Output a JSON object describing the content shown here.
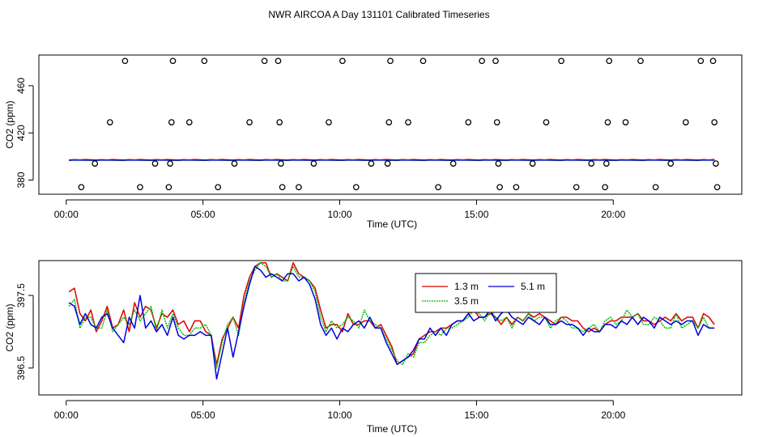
{
  "title": "NWR AIRCOA A  Day 131101  Calibrated Timeseries",
  "colors": {
    "s1": "#e00000",
    "s2": "#00bb00",
    "s3": "#0000dd",
    "frame": "#000000"
  },
  "chart_data": [
    {
      "type": "scatter",
      "xlabel": "Time (UTC)",
      "ylabel": "CO2 (ppm)",
      "xlim": [
        -1.0,
        24.7
      ],
      "ylim": [
        368,
        486
      ],
      "xticks": [
        0,
        5,
        10,
        15,
        20
      ],
      "xtick_labels": [
        "00:00",
        "05:00",
        "10:00",
        "15:00",
        "20:00"
      ],
      "yticks": [
        380,
        420,
        460
      ],
      "ytick_labels": [
        "380",
        "420",
        "460"
      ],
      "grid": false,
      "points": [
        [
          0.55,
          374
        ],
        [
          1.05,
          394
        ],
        [
          1.6,
          429
        ],
        [
          2.15,
          481
        ],
        [
          2.7,
          374
        ],
        [
          3.25,
          394
        ],
        [
          3.75,
          374
        ],
        [
          3.8,
          394
        ],
        [
          3.85,
          429
        ],
        [
          3.9,
          481
        ],
        [
          4.5,
          429
        ],
        [
          5.05,
          481
        ],
        [
          5.55,
          374
        ],
        [
          6.15,
          394
        ],
        [
          6.7,
          429
        ],
        [
          7.25,
          481
        ],
        [
          7.75,
          481
        ],
        [
          7.8,
          429
        ],
        [
          7.85,
          394
        ],
        [
          7.9,
          374
        ],
        [
          8.5,
          374
        ],
        [
          9.05,
          394
        ],
        [
          9.6,
          429
        ],
        [
          10.1,
          481
        ],
        [
          10.6,
          374
        ],
        [
          11.15,
          394
        ],
        [
          11.75,
          394
        ],
        [
          11.8,
          429
        ],
        [
          11.85,
          481
        ],
        [
          12.5,
          429
        ],
        [
          13.05,
          481
        ],
        [
          13.6,
          374
        ],
        [
          14.15,
          394
        ],
        [
          14.7,
          429
        ],
        [
          15.2,
          481
        ],
        [
          15.7,
          481
        ],
        [
          15.75,
          429
        ],
        [
          15.8,
          394
        ],
        [
          15.85,
          374
        ],
        [
          16.45,
          374
        ],
        [
          17.05,
          394
        ],
        [
          17.55,
          429
        ],
        [
          18.1,
          481
        ],
        [
          18.65,
          374
        ],
        [
          19.2,
          394
        ],
        [
          19.7,
          374
        ],
        [
          19.75,
          394
        ],
        [
          19.8,
          429
        ],
        [
          19.85,
          481
        ],
        [
          20.45,
          429
        ],
        [
          21.0,
          481
        ],
        [
          21.55,
          374
        ],
        [
          22.1,
          394
        ],
        [
          22.65,
          429
        ],
        [
          23.2,
          481
        ],
        [
          23.65,
          481
        ],
        [
          23.7,
          429
        ],
        [
          23.75,
          394
        ],
        [
          23.8,
          374
        ]
      ],
      "series_y": 397
    },
    {
      "type": "line",
      "xlabel": "Time (UTC)",
      "ylabel": "CO2 (ppm)",
      "xlim": [
        -1.0,
        24.7
      ],
      "ylim": [
        396.13,
        397.98
      ],
      "xticks": [
        0,
        5,
        10,
        15,
        20
      ],
      "xtick_labels": [
        "00:00",
        "05:00",
        "10:00",
        "15:00",
        "20:00"
      ],
      "yticks": [
        396.5,
        397.5
      ],
      "ytick_labels": [
        "396.5",
        "397.5"
      ],
      "grid": false,
      "legend": {
        "position": "top-center",
        "entries": [
          "1.3 m",
          "3.5 m",
          "5.1 m"
        ]
      },
      "x": [
        0.1,
        0.3,
        0.5,
        0.7,
        0.9,
        1.1,
        1.3,
        1.5,
        1.7,
        1.9,
        2.1,
        2.3,
        2.5,
        2.7,
        2.9,
        3.1,
        3.3,
        3.5,
        3.7,
        3.9,
        4.1,
        4.3,
        4.5,
        4.7,
        4.9,
        5.1,
        5.3,
        5.5,
        5.7,
        5.9,
        6.1,
        6.3,
        6.5,
        6.7,
        6.9,
        7.1,
        7.3,
        7.5,
        7.7,
        7.9,
        8.1,
        8.3,
        8.5,
        8.7,
        8.9,
        9.1,
        9.3,
        9.5,
        9.7,
        9.9,
        10.1,
        10.3,
        10.5,
        10.7,
        10.9,
        11.1,
        11.3,
        11.5,
        11.7,
        11.9,
        12.1,
        12.3,
        12.5,
        12.7,
        12.9,
        13.1,
        13.3,
        13.5,
        13.7,
        13.9,
        14.1,
        14.3,
        14.5,
        14.7,
        14.9,
        15.1,
        15.3,
        15.5,
        15.7,
        15.9,
        16.1,
        16.3,
        16.5,
        16.7,
        16.9,
        17.1,
        17.3,
        17.5,
        17.7,
        17.9,
        18.1,
        18.3,
        18.5,
        18.7,
        18.9,
        19.1,
        19.3,
        19.5,
        19.7,
        19.9,
        20.1,
        20.3,
        20.5,
        20.7,
        20.9,
        21.1,
        21.3,
        21.5,
        21.7,
        21.9,
        22.1,
        22.3,
        22.5,
        22.7,
        22.9,
        23.1,
        23.3,
        23.5,
        23.7
      ],
      "series": [
        {
          "name": "1.3 m",
          "values": [
            397.55,
            397.6,
            397.25,
            397.15,
            397.3,
            397.0,
            397.15,
            397.35,
            397.05,
            397.1,
            397.3,
            397.0,
            397.4,
            397.2,
            397.35,
            397.3,
            397.05,
            397.25,
            397.2,
            397.3,
            397.1,
            397.15,
            397.0,
            397.15,
            397.15,
            397.0,
            396.95,
            396.55,
            396.9,
            397.05,
            397.2,
            397.05,
            397.5,
            397.75,
            397.9,
            397.95,
            397.95,
            397.75,
            397.8,
            397.75,
            397.7,
            397.95,
            397.8,
            397.75,
            397.7,
            397.6,
            397.3,
            397.05,
            397.1,
            397.1,
            397.0,
            397.25,
            397.1,
            397.1,
            397.15,
            397.15,
            397.05,
            397.1,
            396.95,
            396.8,
            396.55,
            396.6,
            396.65,
            396.7,
            396.9,
            396.95,
            397.0,
            397.0,
            397.05,
            397.05,
            397.1,
            397.15,
            397.15,
            397.25,
            397.3,
            397.2,
            397.2,
            397.25,
            397.2,
            397.1,
            397.2,
            397.1,
            397.2,
            397.15,
            397.25,
            397.2,
            397.25,
            397.2,
            397.15,
            397.1,
            397.2,
            397.2,
            397.15,
            397.15,
            397.05,
            397.0,
            397.05,
            397.0,
            397.1,
            397.15,
            397.15,
            397.2,
            397.2,
            397.2,
            397.25,
            397.15,
            397.15,
            397.1,
            397.15,
            397.2,
            397.15,
            397.25,
            397.15,
            397.2,
            397.2,
            397.05,
            397.25,
            397.2,
            397.1
          ]
        },
        {
          "name": "3.5 m",
          "values": [
            397.35,
            397.45,
            397.05,
            397.2,
            397.2,
            397.05,
            397.05,
            397.3,
            397.0,
            397.1,
            397.2,
            397.1,
            397.3,
            397.15,
            397.25,
            397.35,
            397.0,
            397.3,
            397.05,
            397.25,
            397.05,
            396.95,
            396.95,
            397.05,
            397.05,
            397.1,
            396.95,
            396.5,
            396.85,
            397.1,
            397.2,
            396.95,
            397.4,
            397.7,
            397.85,
            397.95,
            397.9,
            397.75,
            397.8,
            397.7,
            397.7,
            397.9,
            397.75,
            397.75,
            397.7,
            397.55,
            397.2,
            397.0,
            397.15,
            397.05,
            397.1,
            397.2,
            397.15,
            397.05,
            397.3,
            397.15,
            397.1,
            397.05,
            396.9,
            396.75,
            396.6,
            396.55,
            396.7,
            396.65,
            396.85,
            396.85,
            396.95,
            397.0,
            396.95,
            397.05,
            397.05,
            397.1,
            397.15,
            397.2,
            397.3,
            397.25,
            397.15,
            397.3,
            397.2,
            397.15,
            397.2,
            397.05,
            397.2,
            397.15,
            397.25,
            397.15,
            397.2,
            397.2,
            397.05,
            397.15,
            397.2,
            397.15,
            397.05,
            397.05,
            397.0,
            397.05,
            397.1,
            397.0,
            397.15,
            397.2,
            397.1,
            397.15,
            397.3,
            397.2,
            397.25,
            397.1,
            397.1,
            397.2,
            397.15,
            397.05,
            397.05,
            397.25,
            397.05,
            397.1,
            397.15,
            397.05,
            397.2,
            397.05,
            397.05
          ]
        },
        {
          "name": "5.1 m",
          "values": [
            397.4,
            397.35,
            397.1,
            397.25,
            397.1,
            397.05,
            397.2,
            397.25,
            397.05,
            396.95,
            396.85,
            397.2,
            397.05,
            397.5,
            397.05,
            397.15,
            397.0,
            397.1,
            396.95,
            397.2,
            396.95,
            396.9,
            396.95,
            396.95,
            397.0,
            396.95,
            396.95,
            396.35,
            396.7,
            397.05,
            396.65,
            397.0,
            397.35,
            397.65,
            397.9,
            397.85,
            397.75,
            397.8,
            397.75,
            397.7,
            397.8,
            397.8,
            397.7,
            397.75,
            397.65,
            397.45,
            397.1,
            396.95,
            397.05,
            396.9,
            397.05,
            397.0,
            397.1,
            397.15,
            397.05,
            397.2,
            397.05,
            397.05,
            396.85,
            396.7,
            396.55,
            396.6,
            396.65,
            396.75,
            396.9,
            396.9,
            397.05,
            396.95,
            397.05,
            396.95,
            397.1,
            397.15,
            397.15,
            397.25,
            397.15,
            397.2,
            397.2,
            397.3,
            397.15,
            397.25,
            397.3,
            397.2,
            397.15,
            397.1,
            397.2,
            397.15,
            397.1,
            397.2,
            397.1,
            397.1,
            397.15,
            397.1,
            397.1,
            397.05,
            396.95,
            397.05,
            397.0,
            397.0,
            397.1,
            397.1,
            397.05,
            397.15,
            397.1,
            397.2,
            397.1,
            397.2,
            397.15,
            397.05,
            397.2,
            397.15,
            397.1,
            397.15,
            397.1,
            397.15,
            397.15,
            396.95,
            397.1,
            397.05,
            397.05
          ]
        }
      ]
    }
  ]
}
